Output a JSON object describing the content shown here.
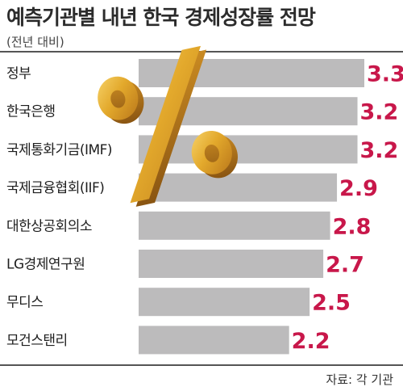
{
  "header": {
    "title": "예측기관별 내년 한국 경제성장률 전망",
    "subtitle": "(전년 대비)"
  },
  "footer": {
    "source": "자료: 각 기관"
  },
  "decoration": {
    "symbol": "%",
    "symbol_color": "#e0a82a"
  },
  "colors": {
    "bar": "#bcbbbc",
    "value": "#c8174a",
    "label": "#1e1e1e"
  },
  "chart_data": {
    "type": "bar",
    "orientation": "horizontal",
    "title": "예측기관별 내년 한국 경제성장률 전망",
    "subtitle": "(전년 대비)",
    "categories": [
      "정부",
      "한국은행",
      "국제통화기금(IMF)",
      "국제금융협회(IIF)",
      "대한상공회의소",
      "LG경제연구원",
      "무디스",
      "모건스탠리"
    ],
    "values": [
      3.3,
      3.2,
      3.2,
      2.9,
      2.8,
      2.7,
      2.5,
      2.2
    ],
    "value_labels": [
      "3.3",
      "3.2",
      "3.2",
      "2.9",
      "2.8",
      "2.7",
      "2.5",
      "2.2"
    ],
    "xlim": [
      0,
      3.3
    ],
    "grid": false,
    "legend": "none"
  }
}
